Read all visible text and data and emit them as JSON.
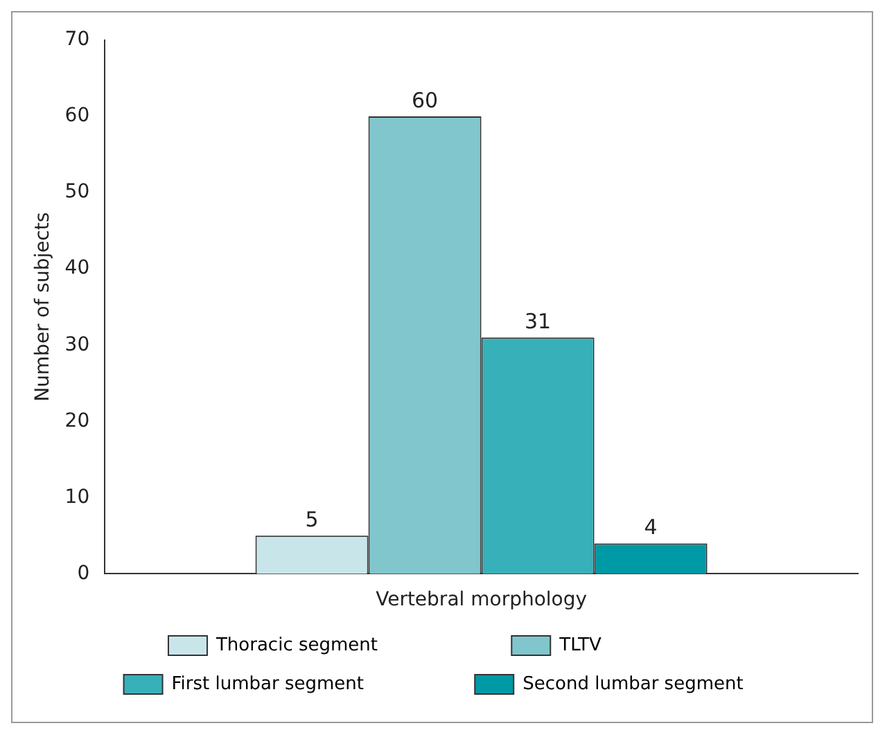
{
  "chart_data": {
    "type": "bar",
    "ylabel": "Number of subjects",
    "categories": [
      "Vertebral morphology"
    ],
    "series": [
      {
        "name": "Thoracic segment",
        "color": "#c8e6ea",
        "values": [
          5
        ]
      },
      {
        "name": "TLTV",
        "color": "#80c6cc",
        "values": [
          60
        ]
      },
      {
        "name": "First lumbar segment",
        "color": "#38b0b9",
        "values": [
          31
        ]
      },
      {
        "name": "Second lumbar segment",
        "color": "#0099a6",
        "values": [
          4
        ]
      }
    ],
    "ylim": [
      0,
      70
    ],
    "yticks": [
      0,
      10,
      20,
      30,
      40,
      50,
      60,
      70
    ],
    "grid": false,
    "legend": "bottom",
    "data_labels": true
  }
}
